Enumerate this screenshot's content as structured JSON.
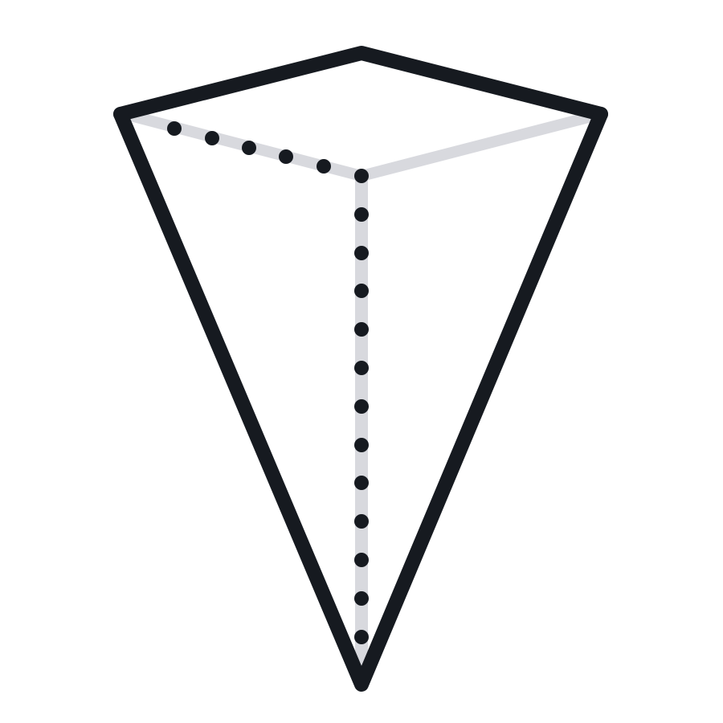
{
  "figure": {
    "icon": "inverted-square-pyramid-icon",
    "style": "line-art"
  },
  "colors": {
    "background": "#ffffff",
    "outline": "#161a20",
    "hidden_edge": "#d8d9de",
    "hidden_dot": "#161a20"
  }
}
